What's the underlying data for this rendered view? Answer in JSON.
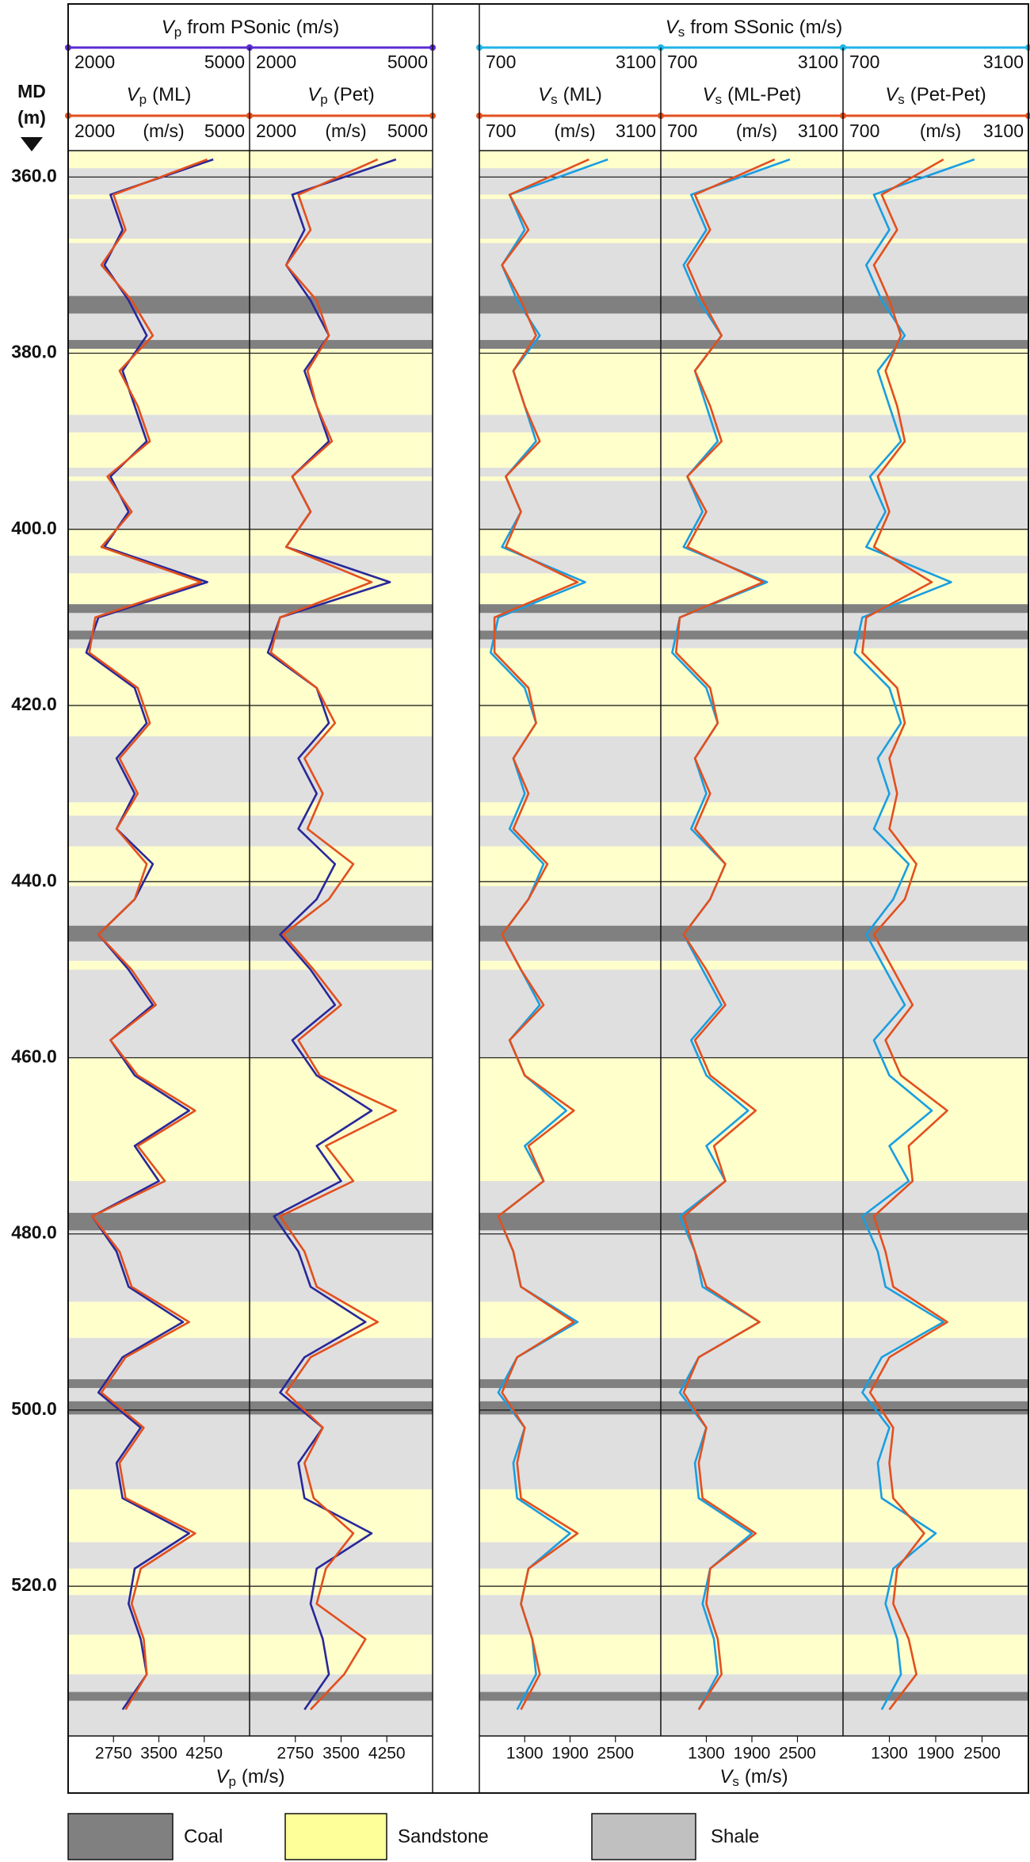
{
  "chart_data": {
    "type": "well-log",
    "depth_title": "MD",
    "depth_unit": "(m)",
    "ylim": [
      357,
      537
    ],
    "yticks": [
      {
        "value": 360,
        "label": "360.0"
      },
      {
        "value": 380,
        "label": "380.0"
      },
      {
        "value": 400,
        "label": "400.0"
      },
      {
        "value": 420,
        "label": "420.0"
      },
      {
        "value": 440,
        "label": "440.0"
      },
      {
        "value": 460,
        "label": "460.0"
      },
      {
        "value": 480,
        "label": "480.0"
      },
      {
        "value": 500,
        "label": "500.0"
      },
      {
        "value": 520,
        "label": "520.0"
      }
    ],
    "grid": true,
    "depth": [
      358,
      362,
      366,
      370,
      374,
      378,
      382,
      386,
      390,
      394,
      398,
      402,
      406,
      410,
      414,
      418,
      422,
      426,
      430,
      434,
      438,
      442,
      446,
      450,
      454,
      458,
      462,
      466,
      470,
      474,
      478,
      482,
      486,
      490,
      494,
      498,
      502,
      506,
      510,
      514,
      518,
      522,
      526,
      530,
      534
    ],
    "groups": [
      {
        "symbol": "V",
        "subscript": "p",
        "title": "from PSonic (m/s)",
        "xlim": [
          2000,
          5000
        ],
        "track_unit": "(m/s)",
        "xticks": [
          2750,
          3500,
          4250
        ],
        "xlabel": "(m/s)",
        "header_color": "#5b2bd1",
        "measured_color": "#28289a",
        "predicted_color": "#e2501e",
        "measured": [
          4400,
          2700,
          2900,
          2600,
          3000,
          3300,
          2900,
          3100,
          3300,
          2700,
          3000,
          2600,
          4300,
          2500,
          2300,
          3100,
          3300,
          2800,
          3100,
          2800,
          3400,
          3100,
          2500,
          3000,
          3400,
          2700,
          3100,
          4000,
          3100,
          3500,
          2400,
          2800,
          3000,
          3900,
          2900,
          2500,
          3200,
          2800,
          2900,
          4000,
          3100,
          3000,
          3200,
          3300,
          2900
        ],
        "tracks": [
          {
            "label": "(ML)",
            "values": [
              4300,
              2750,
              2950,
              2550,
              3050,
              3400,
              2850,
              3150,
              3350,
              2650,
              3050,
              2550,
              4200,
              2450,
              2350,
              3150,
              3350,
              2850,
              3150,
              2800,
              3300,
              3100,
              2500,
              3050,
              3450,
              2700,
              3150,
              4100,
              3150,
              3600,
              2400,
              2850,
              3050,
              4000,
              2950,
              2550,
              3250,
              2850,
              2950,
              4100,
              3200,
              3050,
              3250,
              3300,
              2950
            ]
          },
          {
            "label": "(Pet)",
            "values": [
              4100,
              2800,
              3000,
              2600,
              3100,
              3300,
              2950,
              3100,
              3350,
              2700,
              3000,
              2600,
              4000,
              2500,
              2350,
              3100,
              3400,
              2900,
              3200,
              2950,
              3700,
              3300,
              2550,
              3050,
              3500,
              2800,
              3150,
              4400,
              3250,
              3700,
              2500,
              2900,
              3100,
              4100,
              3000,
              2600,
              3200,
              2900,
              3050,
              3700,
              3250,
              3100,
              3900,
              3550,
              3000
            ]
          }
        ]
      },
      {
        "symbol": "V",
        "subscript": "s",
        "title": "from SSonic (m/s)",
        "xlim": [
          700,
          3100
        ],
        "track_unit": "(m/s)",
        "xticks": [
          1300,
          1900,
          2500
        ],
        "xlabel": "(m/s)",
        "header_color": "#1fb4e6",
        "measured_color": "#1a9ee0",
        "predicted_color": "#e2501e",
        "measured": [
          2400,
          1100,
          1300,
          1000,
          1200,
          1500,
          1150,
          1300,
          1450,
          1050,
          1250,
          1000,
          2100,
          950,
          850,
          1300,
          1450,
          1150,
          1300,
          1100,
          1550,
          1350,
          1000,
          1250,
          1500,
          1100,
          1300,
          1850,
          1300,
          1550,
          950,
          1150,
          1250,
          2000,
          1200,
          950,
          1300,
          1150,
          1200,
          1900,
          1350,
          1250,
          1400,
          1450,
          1200
        ],
        "tracks": [
          {
            "label": "(ML)",
            "values": [
              2150,
              1100,
              1350,
              1000,
              1250,
              1450,
              1150,
              1300,
              1500,
              1050,
              1250,
              1050,
              2000,
              900,
              900,
              1350,
              1450,
              1150,
              1350,
              1150,
              1600,
              1350,
              1000,
              1250,
              1550,
              1100,
              1300,
              1950,
              1350,
              1550,
              950,
              1150,
              1250,
              1950,
              1200,
              1000,
              1300,
              1200,
              1250,
              2000,
              1350,
              1250,
              1400,
              1500,
              1250
            ]
          },
          {
            "label": "(ML-Pet)",
            "values": [
              2200,
              1150,
              1350,
              1050,
              1250,
              1500,
              1150,
              1350,
              1500,
              1050,
              1300,
              1050,
              2050,
              950,
              900,
              1350,
              1450,
              1150,
              1350,
              1150,
              1550,
              1350,
              1000,
              1300,
              1550,
              1150,
              1350,
              1950,
              1400,
              1550,
              1000,
              1150,
              1300,
              2000,
              1200,
              1000,
              1300,
              1200,
              1250,
              1950,
              1350,
              1300,
              1450,
              1500,
              1200
            ]
          },
          {
            "label": "(Pet-Pet)",
            "values": [
              2000,
              1200,
              1400,
              1100,
              1300,
              1450,
              1250,
              1400,
              1500,
              1150,
              1300,
              1100,
              1850,
              1000,
              950,
              1400,
              1500,
              1300,
              1400,
              1300,
              1650,
              1500,
              1100,
              1350,
              1600,
              1250,
              1450,
              2050,
              1550,
              1600,
              1100,
              1250,
              1350,
              2050,
              1300,
              1050,
              1350,
              1300,
              1350,
              1750,
              1400,
              1350,
              1550,
              1650,
              1300
            ]
          }
        ]
      }
    ],
    "lithology_legend": [
      {
        "name": "Coal",
        "color": "#808080"
      },
      {
        "name": "Sandstone",
        "color": "#ffff99"
      },
      {
        "name": "Shale",
        "color": "#c0c0c0"
      }
    ],
    "lithology": [
      {
        "top": 357,
        "base": 359,
        "rock": "Sandstone"
      },
      {
        "top": 359,
        "base": 362,
        "rock": "Shale"
      },
      {
        "top": 362,
        "base": 362.5,
        "rock": "Sandstone"
      },
      {
        "top": 362.5,
        "base": 367,
        "rock": "Shale"
      },
      {
        "top": 367,
        "base": 367.5,
        "rock": "Sandstone"
      },
      {
        "top": 367.5,
        "base": 373.5,
        "rock": "Shale"
      },
      {
        "top": 373.5,
        "base": 375.5,
        "rock": "Coal"
      },
      {
        "top": 375.5,
        "base": 378.5,
        "rock": "Shale"
      },
      {
        "top": 378.5,
        "base": 379.5,
        "rock": "Coal"
      },
      {
        "top": 379.5,
        "base": 387,
        "rock": "Sandstone"
      },
      {
        "top": 387,
        "base": 389,
        "rock": "Shale"
      },
      {
        "top": 389,
        "base": 393,
        "rock": "Sandstone"
      },
      {
        "top": 393,
        "base": 394,
        "rock": "Shale"
      },
      {
        "top": 394,
        "base": 394.5,
        "rock": "Sandstone"
      },
      {
        "top": 394.5,
        "base": 400,
        "rock": "Shale"
      },
      {
        "top": 400,
        "base": 403,
        "rock": "Sandstone"
      },
      {
        "top": 403,
        "base": 405,
        "rock": "Shale"
      },
      {
        "top": 405,
        "base": 408.5,
        "rock": "Sandstone"
      },
      {
        "top": 408.5,
        "base": 409.5,
        "rock": "Coal"
      },
      {
        "top": 409.5,
        "base": 411.5,
        "rock": "Shale"
      },
      {
        "top": 411.5,
        "base": 412.5,
        "rock": "Coal"
      },
      {
        "top": 412.5,
        "base": 413.5,
        "rock": "Shale"
      },
      {
        "top": 413.5,
        "base": 423.5,
        "rock": "Sandstone"
      },
      {
        "top": 423.5,
        "base": 431,
        "rock": "Shale"
      },
      {
        "top": 431,
        "base": 432.5,
        "rock": "Sandstone"
      },
      {
        "top": 432.5,
        "base": 436,
        "rock": "Shale"
      },
      {
        "top": 436,
        "base": 440.5,
        "rock": "Sandstone"
      },
      {
        "top": 440.5,
        "base": 445,
        "rock": "Shale"
      },
      {
        "top": 445,
        "base": 446.8,
        "rock": "Coal"
      },
      {
        "top": 446.8,
        "base": 449,
        "rock": "Shale"
      },
      {
        "top": 449,
        "base": 450,
        "rock": "Sandstone"
      },
      {
        "top": 450,
        "base": 460,
        "rock": "Shale"
      },
      {
        "top": 460,
        "base": 474,
        "rock": "Sandstone"
      },
      {
        "top": 474,
        "base": 477.6,
        "rock": "Shale"
      },
      {
        "top": 477.6,
        "base": 479.6,
        "rock": "Coal"
      },
      {
        "top": 479.6,
        "base": 487.7,
        "rock": "Shale"
      },
      {
        "top": 487.7,
        "base": 491.8,
        "rock": "Sandstone"
      },
      {
        "top": 491.8,
        "base": 496.5,
        "rock": "Shale"
      },
      {
        "top": 496.5,
        "base": 497.5,
        "rock": "Coal"
      },
      {
        "top": 497.5,
        "base": 499,
        "rock": "Shale"
      },
      {
        "top": 499,
        "base": 500.5,
        "rock": "Coal"
      },
      {
        "top": 500.5,
        "base": 509,
        "rock": "Shale"
      },
      {
        "top": 509,
        "base": 515,
        "rock": "Sandstone"
      },
      {
        "top": 515,
        "base": 518,
        "rock": "Shale"
      },
      {
        "top": 518,
        "base": 521,
        "rock": "Sandstone"
      },
      {
        "top": 521,
        "base": 525.5,
        "rock": "Shale"
      },
      {
        "top": 525.5,
        "base": 530,
        "rock": "Sandstone"
      },
      {
        "top": 530,
        "base": 532,
        "rock": "Shale"
      },
      {
        "top": 532,
        "base": 533,
        "rock": "Coal"
      },
      {
        "top": 533,
        "base": 537,
        "rock": "Shale"
      }
    ]
  }
}
